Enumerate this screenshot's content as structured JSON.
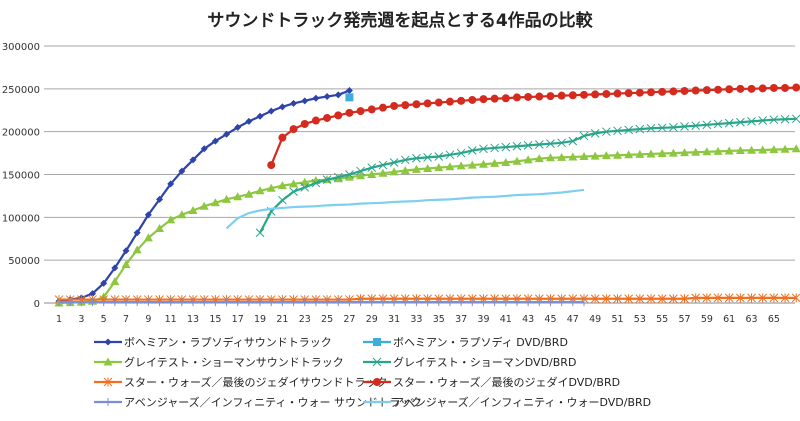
{
  "chart_data": {
    "type": "line",
    "title": "サウンドトラック発売週を起点とする4作品の比較",
    "xlabel": "",
    "ylabel": "",
    "ylim": [
      0,
      300000
    ],
    "yticks": [
      "0",
      "50000",
      "100000",
      "150000",
      "200000",
      "250000",
      "300000"
    ],
    "xlim": [
      1,
      67
    ],
    "xticks": [
      "1",
      "3",
      "5",
      "7",
      "9",
      "11",
      "13",
      "15",
      "17",
      "19",
      "21",
      "23",
      "25",
      "27",
      "29",
      "31",
      "33",
      "35",
      "37",
      "39",
      "41",
      "43",
      "45",
      "47",
      "49",
      "51",
      "53",
      "55",
      "57",
      "59",
      "61",
      "63",
      "65"
    ],
    "grid": "horizontal",
    "legend_position": "bottom",
    "series": [
      {
        "name": "ボヘミアン・ラプソディサウンドトラック",
        "color": "#2E44A8",
        "marker": "diamond",
        "start_week": 1,
        "values": [
          2000,
          4000,
          6000,
          11000,
          23000,
          41000,
          61000,
          82000,
          103000,
          121000,
          139000,
          154000,
          167000,
          180000,
          189000,
          197000,
          205000,
          212000,
          218000,
          224000,
          229000,
          233000,
          236000,
          239000,
          241000,
          243000,
          248000
        ]
      },
      {
        "name": "ボヘミアン・ラプソディ DVD/BRD",
        "color": "#3DAEDB",
        "marker": "square",
        "start_week": 27,
        "values": [
          240000
        ]
      },
      {
        "name": "グレイテスト・ショーマンサウンドトラック",
        "color": "#8DC63F",
        "marker": "triangle",
        "start_week": 1,
        "values": [
          0,
          500,
          1000,
          2000,
          7000,
          25000,
          45000,
          62000,
          76000,
          87000,
          97000,
          103000,
          108000,
          113000,
          117000,
          121000,
          124000,
          127000,
          131000,
          134000,
          137000,
          139000,
          141000,
          143000,
          144000,
          145000,
          147000,
          148500,
          150000,
          151500,
          153000,
          154500,
          156000,
          157000,
          158000,
          159000,
          160000,
          161000,
          162000,
          163000,
          164000,
          165500,
          167000,
          168500,
          169500,
          170000,
          170500,
          171000,
          171500,
          172000,
          172500,
          173000,
          173500,
          174000,
          174500,
          175000,
          175500,
          176000,
          176500,
          177000,
          177500,
          178000,
          178300,
          178600,
          179000,
          179500,
          180000
        ]
      },
      {
        "name": "グレイテスト・ショーマンDVD/BRD",
        "color": "#2BA58A",
        "marker": "x",
        "start_week": 19,
        "values": [
          82000,
          107000,
          120000,
          130000,
          135000,
          140000,
          144000,
          147000,
          150000,
          154000,
          158000,
          161000,
          164000,
          167000,
          169000,
          170000,
          171000,
          173000,
          175000,
          178000,
          180000,
          181000,
          182000,
          183000,
          184000,
          185000,
          186000,
          187000,
          189000,
          195000,
          198000,
          200000,
          201000,
          202000,
          203000,
          204000,
          204500,
          205000,
          206000,
          207000,
          208000,
          209000,
          210000,
          211000,
          212000,
          213000,
          214000,
          214500,
          215000
        ]
      },
      {
        "name": "スター・ウォーズ／最後のジェダイサウンドトラック",
        "color": "#F07020",
        "marker": "asterisk",
        "start_week": 1,
        "values": [
          4000,
          4000,
          4000,
          4000,
          4000,
          4000,
          4000,
          4000,
          4000,
          4000,
          4000,
          4000,
          4000,
          4000,
          4000,
          4000,
          4000,
          4000,
          4000,
          4000,
          4000,
          4000,
          4000,
          4000,
          4000,
          4000,
          4000,
          5000,
          5000,
          5000,
          5000,
          5000,
          5000,
          5000,
          5000,
          5000,
          5000,
          5000,
          5000,
          5000,
          5000,
          5000,
          5000,
          5000,
          5000,
          5000,
          5000,
          5000,
          5000,
          5000,
          5000,
          5000,
          5000,
          5000,
          5000,
          5000,
          5000,
          6000,
          6000,
          6000,
          6000,
          6000,
          6000,
          6000,
          6000,
          6000,
          6000
        ]
      },
      {
        "name": "スター・ウォーズ／最後のジェダイDVD/BRD",
        "color": "#D52B1E",
        "marker": "circle",
        "start_week": 20,
        "values": [
          161000,
          193000,
          203000,
          209000,
          213000,
          216000,
          219000,
          222000,
          224000,
          226000,
          228000,
          230000,
          231000,
          232000,
          233000,
          234000,
          235000,
          236000,
          237000,
          238000,
          238500,
          239000,
          240000,
          240500,
          241000,
          241500,
          242000,
          242500,
          243000,
          243500,
          244000,
          244500,
          245000,
          245500,
          246000,
          246500,
          247000,
          247500,
          248000,
          248500,
          249000,
          249500,
          250000,
          250000,
          250500,
          251000,
          251000,
          251500
        ]
      },
      {
        "name": "アベンジャーズ／インフィニティ・ウォー サウンドトラック",
        "color": "#7A8FD6",
        "marker": "plus",
        "start_week": 1,
        "values": [
          1000,
          1000,
          1000,
          1000,
          1000,
          1000,
          1000,
          1000,
          1000,
          1000,
          1000,
          1000,
          1000,
          1000,
          1000,
          1000,
          1000,
          1000,
          1000,
          1000,
          1000,
          1000,
          1000,
          1000,
          1000,
          1000,
          1000,
          1000,
          1000,
          1000,
          1000,
          1000,
          1000,
          1000,
          1000,
          1000,
          1000,
          1000,
          1000,
          1000,
          1000,
          1000,
          1000,
          1000,
          1000,
          1000,
          1000,
          1000
        ]
      },
      {
        "name": "アベンジャーズ／インフィニティ・ウォーDVD/BRD",
        "color": "#7CCFF0",
        "marker": "none",
        "start_week": 16,
        "values": [
          87000,
          99000,
          105000,
          108000,
          110000,
          111000,
          112000,
          112500,
          113000,
          114000,
          114500,
          115000,
          116000,
          116500,
          117000,
          118000,
          118500,
          119000,
          120000,
          120500,
          121000,
          122000,
          123000,
          123500,
          124000,
          125000,
          126000,
          126500,
          127000,
          128000,
          129000,
          130500,
          132000
        ]
      }
    ]
  }
}
